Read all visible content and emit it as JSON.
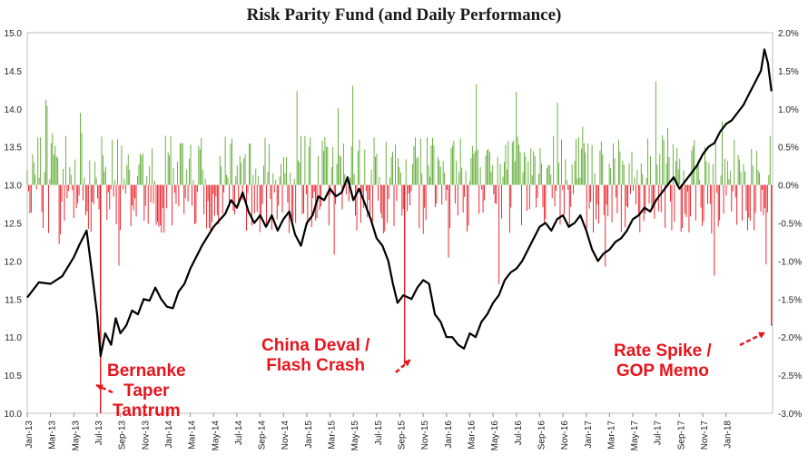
{
  "chart_data": {
    "type": "line+bar",
    "title": "Risk Parity Fund (and Daily Performance)",
    "left_axis": {
      "min": 10.0,
      "max": 15.0,
      "ticks": [
        "10.0",
        "10.5",
        "11.0",
        "11.5",
        "12.0",
        "12.5",
        "13.0",
        "13.5",
        "14.0",
        "14.5",
        "15.0"
      ]
    },
    "right_axis": {
      "min": -3.0,
      "max": 2.0,
      "unit": "%",
      "ticks": [
        "-3.0%",
        "-2.5%",
        "-2.0%",
        "-1.5%",
        "-1.0%",
        "-0.5%",
        "0.0%",
        "0.5%",
        "1.0%",
        "1.5%",
        "2.0%"
      ]
    },
    "x_tick_labels": [
      "Jan-13",
      "Mar-13",
      "May-13",
      "Jul-13",
      "Sep-13",
      "Nov-13",
      "Jan-14",
      "Mar-14",
      "May-14",
      "Jul-14",
      "Sep-14",
      "Nov-14",
      "Jan-15",
      "Mar-15",
      "May-15",
      "Jul-15",
      "Sep-15",
      "Nov-15",
      "Jan-16",
      "Mar-16",
      "May-16",
      "Jul-16",
      "Sep-16",
      "Nov-16",
      "Jan-17",
      "Mar-17",
      "May-17",
      "Jul-17",
      "Sep-17",
      "Nov-17",
      "Jan-18"
    ],
    "price_series": {
      "name": "Risk Parity Fund",
      "color": "#000000",
      "points": [
        [
          0,
          11.52
        ],
        [
          1,
          11.72
        ],
        [
          2,
          11.7
        ],
        [
          3,
          11.8
        ],
        [
          4,
          12.05
        ],
        [
          4.5,
          12.22
        ],
        [
          5.1,
          12.4
        ],
        [
          5.6,
          11.8
        ],
        [
          6,
          11.3
        ],
        [
          6.3,
          10.75
        ],
        [
          6.7,
          11.05
        ],
        [
          7.2,
          10.9
        ],
        [
          7.6,
          11.25
        ],
        [
          8,
          11.05
        ],
        [
          8.5,
          11.15
        ],
        [
          9,
          11.35
        ],
        [
          9.5,
          11.3
        ],
        [
          10,
          11.5
        ],
        [
          10.5,
          11.48
        ],
        [
          11,
          11.65
        ],
        [
          11.5,
          11.5
        ],
        [
          12,
          11.4
        ],
        [
          12.5,
          11.38
        ],
        [
          13,
          11.6
        ],
        [
          13.5,
          11.7
        ],
        [
          14,
          11.9
        ],
        [
          14.5,
          12.05
        ],
        [
          15,
          12.2
        ],
        [
          16,
          12.45
        ],
        [
          17,
          12.62
        ],
        [
          17.5,
          12.8
        ],
        [
          18,
          12.7
        ],
        [
          18.5,
          12.9
        ],
        [
          19,
          12.65
        ],
        [
          19.5,
          12.5
        ],
        [
          20,
          12.6
        ],
        [
          20.5,
          12.45
        ],
        [
          21,
          12.6
        ],
        [
          21.5,
          12.4
        ],
        [
          22,
          12.55
        ],
        [
          22.5,
          12.65
        ],
        [
          23,
          12.35
        ],
        [
          23.5,
          12.2
        ],
        [
          24,
          12.5
        ],
        [
          24.5,
          12.6
        ],
        [
          25,
          12.85
        ],
        [
          25.5,
          12.8
        ],
        [
          26,
          12.95
        ],
        [
          26.5,
          12.85
        ],
        [
          27,
          12.9
        ],
        [
          27.5,
          13.1
        ],
        [
          28,
          12.8
        ],
        [
          28.5,
          12.95
        ],
        [
          29,
          12.75
        ],
        [
          29.5,
          12.55
        ],
        [
          30,
          12.3
        ],
        [
          30.5,
          12.2
        ],
        [
          31,
          12.0
        ],
        [
          31.4,
          11.7
        ],
        [
          31.8,
          11.45
        ],
        [
          32.3,
          11.55
        ],
        [
          33,
          11.5
        ],
        [
          33.5,
          11.65
        ],
        [
          34,
          11.75
        ],
        [
          34.5,
          11.7
        ],
        [
          35,
          11.3
        ],
        [
          35.5,
          11.2
        ],
        [
          36,
          11.0
        ],
        [
          36.5,
          11.0
        ],
        [
          37,
          10.9
        ],
        [
          37.5,
          10.85
        ],
        [
          38,
          11.05
        ],
        [
          38.5,
          11.0
        ],
        [
          39,
          11.2
        ],
        [
          39.5,
          11.3
        ],
        [
          40,
          11.45
        ],
        [
          40.5,
          11.55
        ],
        [
          41,
          11.75
        ],
        [
          41.5,
          11.85
        ],
        [
          42,
          11.9
        ],
        [
          42.5,
          12.0
        ],
        [
          43,
          12.15
        ],
        [
          43.5,
          12.3
        ],
        [
          44,
          12.45
        ],
        [
          44.5,
          12.5
        ],
        [
          45,
          12.4
        ],
        [
          45.5,
          12.55
        ],
        [
          46,
          12.6
        ],
        [
          46.5,
          12.45
        ],
        [
          47,
          12.5
        ],
        [
          47.5,
          12.6
        ],
        [
          48,
          12.4
        ],
        [
          48.5,
          12.15
        ],
        [
          49,
          12.0
        ],
        [
          49.5,
          12.1
        ],
        [
          50,
          12.15
        ],
        [
          50.5,
          12.25
        ],
        [
          51,
          12.3
        ],
        [
          51.5,
          12.4
        ],
        [
          52,
          12.55
        ],
        [
          52.5,
          12.6
        ],
        [
          53,
          12.7
        ],
        [
          53.5,
          12.65
        ],
        [
          54,
          12.8
        ],
        [
          54.5,
          12.9
        ],
        [
          55,
          13.0
        ],
        [
          55.5,
          13.1
        ],
        [
          56,
          12.95
        ],
        [
          56.5,
          13.05
        ],
        [
          57,
          13.15
        ],
        [
          57.5,
          13.25
        ],
        [
          58,
          13.4
        ],
        [
          58.5,
          13.5
        ],
        [
          59,
          13.55
        ],
        [
          59.5,
          13.7
        ],
        [
          60,
          13.8
        ],
        [
          60.5,
          13.85
        ],
        [
          61,
          13.95
        ],
        [
          61.5,
          14.05
        ],
        [
          62,
          14.2
        ],
        [
          62.5,
          14.35
        ],
        [
          63,
          14.5
        ],
        [
          63.3,
          14.78
        ],
        [
          63.6,
          14.6
        ],
        [
          63.9,
          14.23
        ]
      ]
    },
    "daily_bars": {
      "name": "Daily Performance",
      "unit": "%",
      "positive_color": "#5aa82e",
      "negative_color": "#e8141c",
      "notable_days": [
        {
          "label": "Bernanke Taper Tantrum",
          "month_index": 6.3,
          "value": -3.0
        },
        {
          "label": "China Deval / Flash Crash",
          "month_index": 32.4,
          "value": -2.35
        },
        {
          "label": "Rate Spike / GOP Memo",
          "month_index": 63.9,
          "value": -1.85
        }
      ]
    },
    "annotations": [
      {
        "lines": [
          "Bernanke",
          "Taper",
          "Tantrum"
        ]
      },
      {
        "lines": [
          "China Deval /",
          "Flash Crash"
        ]
      },
      {
        "lines": [
          "Rate Spike /",
          "GOP Memo"
        ]
      }
    ],
    "annotation_color": "#e8141c"
  }
}
